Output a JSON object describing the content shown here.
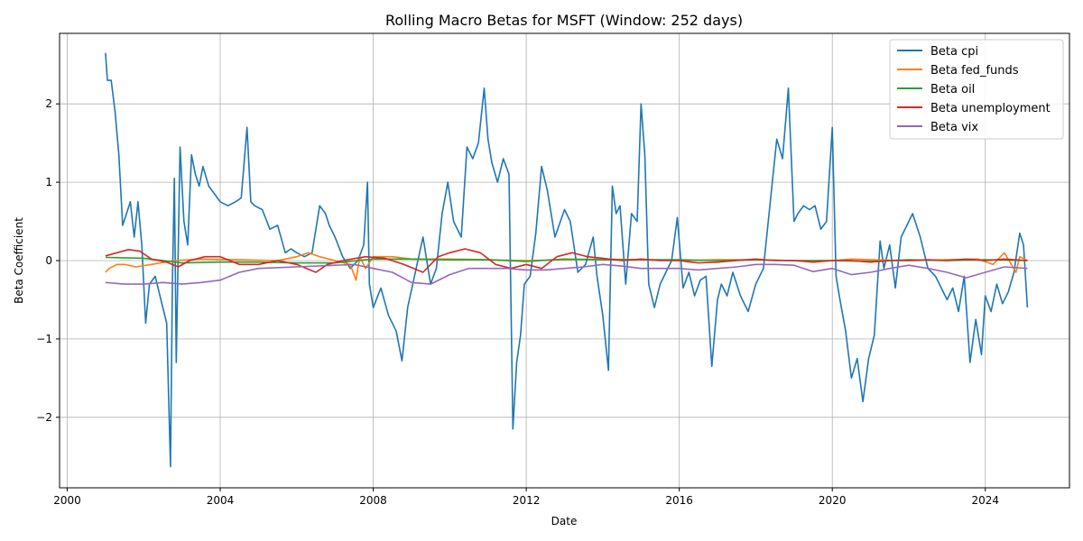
{
  "chart_data": {
    "type": "line",
    "title": "Rolling Macro Betas for MSFT (Window: 252 days)",
    "xlabel": "Date",
    "ylabel": "Beta Coefficient",
    "xlim": [
      1999.8,
      2026.2
    ],
    "ylim": [
      -2.9,
      2.9
    ],
    "x_ticks": [
      2000,
      2004,
      2008,
      2012,
      2016,
      2020,
      2024
    ],
    "y_ticks": [
      -2,
      -1,
      0,
      1,
      2
    ],
    "y_tick_labels": [
      "−2",
      "−1",
      "0",
      "1",
      "2"
    ],
    "grid": true,
    "legend_position": "top-right",
    "series": [
      {
        "name": "Beta cpi",
        "color": "#1f77b4",
        "x": [
          2001.0,
          2001.05,
          2001.15,
          2001.25,
          2001.35,
          2001.45,
          2001.55,
          2001.65,
          2001.75,
          2001.85,
          2001.95,
          2002.05,
          2002.15,
          2002.3,
          2002.45,
          2002.6,
          2002.7,
          2002.75,
          2002.8,
          2002.85,
          2002.95,
          2003.05,
          2003.15,
          2003.25,
          2003.35,
          2003.45,
          2003.55,
          2003.7,
          2003.85,
          2004.0,
          2004.2,
          2004.4,
          2004.55,
          2004.7,
          2004.8,
          2004.9,
          2005.1,
          2005.3,
          2005.5,
          2005.7,
          2005.85,
          2006.0,
          2006.2,
          2006.4,
          2006.6,
          2006.75,
          2006.85,
          2007.0,
          2007.2,
          2007.4,
          2007.6,
          2007.75,
          2007.85,
          2007.9,
          2008.0,
          2008.2,
          2008.4,
          2008.6,
          2008.75,
          2008.9,
          2009.1,
          2009.3,
          2009.5,
          2009.65,
          2009.8,
          2009.95,
          2010.1,
          2010.3,
          2010.45,
          2010.6,
          2010.75,
          2010.9,
          2011.0,
          2011.1,
          2011.25,
          2011.4,
          2011.55,
          2011.65,
          2011.75,
          2011.85,
          2011.95,
          2012.1,
          2012.25,
          2012.4,
          2012.55,
          2012.75,
          2013.0,
          2013.15,
          2013.35,
          2013.55,
          2013.75,
          2013.85,
          2014.0,
          2014.15,
          2014.25,
          2014.35,
          2014.45,
          2014.6,
          2014.75,
          2014.9,
          2015.0,
          2015.1,
          2015.2,
          2015.35,
          2015.5,
          2015.65,
          2015.8,
          2015.95,
          2016.1,
          2016.25,
          2016.4,
          2016.55,
          2016.7,
          2016.85,
          2017.0,
          2017.1,
          2017.25,
          2017.4,
          2017.6,
          2017.8,
          2018.0,
          2018.2,
          2018.4,
          2018.55,
          2018.7,
          2018.85,
          2019.0,
          2019.1,
          2019.25,
          2019.4,
          2019.55,
          2019.7,
          2019.85,
          2020.0,
          2020.1,
          2020.2,
          2020.35,
          2020.5,
          2020.65,
          2020.8,
          2020.95,
          2021.1,
          2021.25,
          2021.35,
          2021.5,
          2021.65,
          2021.8,
          2021.95,
          2022.1,
          2022.3,
          2022.5,
          2022.7,
          2022.85,
          2023.0,
          2023.15,
          2023.3,
          2023.45,
          2023.6,
          2023.75,
          2023.9,
          2024.0,
          2024.15,
          2024.3,
          2024.45,
          2024.6,
          2024.75,
          2024.9,
          2025.0,
          2025.1
        ],
        "values": [
          2.65,
          2.3,
          2.3,
          1.9,
          1.35,
          0.45,
          0.6,
          0.75,
          0.3,
          0.75,
          0.2,
          -0.8,
          -0.3,
          -0.2,
          -0.5,
          -0.8,
          -2.63,
          -0.3,
          1.05,
          -1.3,
          1.45,
          0.5,
          0.2,
          1.35,
          1.1,
          0.95,
          1.2,
          0.95,
          0.85,
          0.75,
          0.7,
          0.75,
          0.8,
          1.7,
          0.75,
          0.7,
          0.65,
          0.4,
          0.45,
          0.1,
          0.15,
          0.1,
          0.05,
          0.1,
          0.7,
          0.6,
          0.45,
          0.3,
          0.05,
          -0.1,
          0.0,
          0.2,
          1.0,
          -0.3,
          -0.6,
          -0.35,
          -0.7,
          -0.9,
          -1.28,
          -0.6,
          -0.15,
          0.3,
          -0.3,
          -0.1,
          0.6,
          1.0,
          0.5,
          0.3,
          1.45,
          1.3,
          1.5,
          2.2,
          1.55,
          1.25,
          1.0,
          1.3,
          1.1,
          -2.15,
          -1.3,
          -0.95,
          -0.3,
          -0.2,
          0.35,
          1.2,
          0.9,
          0.3,
          0.65,
          0.5,
          -0.15,
          -0.05,
          0.3,
          -0.2,
          -0.7,
          -1.4,
          0.95,
          0.6,
          0.7,
          -0.3,
          0.6,
          0.5,
          2.0,
          1.35,
          -0.3,
          -0.6,
          -0.3,
          -0.15,
          0.0,
          0.55,
          -0.35,
          -0.15,
          -0.45,
          -0.25,
          -0.2,
          -1.35,
          -0.5,
          -0.3,
          -0.45,
          -0.15,
          -0.45,
          -0.65,
          -0.3,
          -0.1,
          0.85,
          1.55,
          1.3,
          2.2,
          0.5,
          0.6,
          0.7,
          0.65,
          0.7,
          0.4,
          0.5,
          1.7,
          -0.2,
          -0.5,
          -0.9,
          -1.5,
          -1.25,
          -1.8,
          -1.25,
          -0.95,
          0.25,
          -0.1,
          0.2,
          -0.35,
          0.3,
          0.45,
          0.6,
          0.3,
          -0.1,
          -0.2,
          -0.35,
          -0.5,
          -0.35,
          -0.65,
          -0.2,
          -1.3,
          -0.75,
          -1.2,
          -0.45,
          -0.65,
          -0.3,
          -0.55,
          -0.4,
          -0.15,
          0.35,
          0.2,
          -0.6
        ]
      },
      {
        "name": "Beta fed_funds",
        "color": "#ff7f0e",
        "x": [
          2001.0,
          2001.1,
          2001.3,
          2001.5,
          2001.8,
          2002.2,
          2002.8,
          2003.5,
          2004.5,
          2005.5,
          2006.0,
          2006.3,
          2006.6,
          2007.0,
          2007.4,
          2007.55,
          2007.65,
          2007.8,
          2008.0,
          2008.5,
          2009.0,
          2010.0,
          2011.0,
          2012.0,
          2013.0,
          2014.0,
          2015.0,
          2016.0,
          2017.0,
          2018.0,
          2019.0,
          2020.0,
          2020.5,
          2021.0,
          2022.0,
          2023.0,
          2023.8,
          2024.2,
          2024.5,
          2024.8,
          2024.9,
          2025.1
        ],
        "values": [
          -0.15,
          -0.1,
          -0.05,
          -0.05,
          -0.08,
          -0.05,
          0.0,
          0.02,
          0.01,
          0.0,
          0.05,
          0.1,
          0.05,
          0.0,
          -0.05,
          -0.25,
          0.05,
          -0.1,
          0.05,
          0.05,
          0.02,
          0.02,
          0.01,
          0.0,
          0.01,
          0.02,
          0.01,
          0.0,
          0.01,
          0.01,
          0.0,
          0.0,
          0.02,
          0.01,
          0.0,
          0.01,
          0.02,
          -0.05,
          0.1,
          -0.15,
          0.05,
          0.0
        ]
      },
      {
        "name": "Beta oil",
        "color": "#2ca02c",
        "x": [
          2001.0,
          2002.0,
          2003.0,
          2004.0,
          2005.0,
          2006.0,
          2007.0,
          2008.0,
          2009.0,
          2010.0,
          2011.0,
          2012.0,
          2013.0,
          2014.0,
          2015.0,
          2016.0,
          2017.0,
          2018.0,
          2019.0,
          2020.0,
          2021.0,
          2022.0,
          2023.0,
          2024.0,
          2025.1
        ],
        "values": [
          0.04,
          0.03,
          -0.03,
          -0.02,
          -0.02,
          -0.03,
          -0.03,
          0.02,
          0.02,
          0.01,
          0.01,
          -0.01,
          0.02,
          0.01,
          0.01,
          0.01,
          0.0,
          0.01,
          0.0,
          0.0,
          -0.01,
          0.01,
          0.0,
          0.01,
          0.0
        ]
      },
      {
        "name": "Beta unemployment",
        "color": "#d62728",
        "x": [
          2001.0,
          2001.3,
          2001.6,
          2001.9,
          2002.2,
          2002.6,
          2002.9,
          2003.2,
          2003.6,
          2004.0,
          2004.5,
          2005.0,
          2005.5,
          2006.0,
          2006.5,
          2006.8,
          2007.2,
          2007.8,
          2008.3,
          2008.8,
          2009.3,
          2009.7,
          2010.0,
          2010.4,
          2010.8,
          2011.2,
          2011.6,
          2012.0,
          2012.4,
          2012.8,
          2013.2,
          2013.6,
          2014.0,
          2014.5,
          2015.0,
          2015.5,
          2016.0,
          2016.5,
          2017.0,
          2017.5,
          2018.0,
          2018.5,
          2019.0,
          2019.5,
          2020.0,
          2020.5,
          2021.0,
          2021.5,
          2022.0,
          2022.5,
          2023.0,
          2023.5,
          2024.0,
          2024.5,
          2025.1
        ],
        "values": [
          0.06,
          0.1,
          0.14,
          0.12,
          0.02,
          -0.02,
          -0.08,
          0.0,
          0.05,
          0.05,
          -0.05,
          -0.05,
          0.0,
          -0.05,
          -0.15,
          -0.05,
          0.0,
          0.05,
          0.03,
          -0.05,
          -0.15,
          0.05,
          0.1,
          0.15,
          0.1,
          -0.05,
          -0.1,
          -0.05,
          -0.1,
          0.05,
          0.1,
          0.05,
          0.03,
          0.0,
          0.02,
          0.0,
          0.0,
          -0.03,
          -0.02,
          0.0,
          0.02,
          0.0,
          0.0,
          -0.02,
          0.0,
          0.0,
          -0.02,
          0.0,
          0.0,
          0.01,
          0.0,
          0.02,
          0.0,
          0.02,
          0.0
        ]
      },
      {
        "name": "Beta vix",
        "color": "#9467bd",
        "x": [
          2001.0,
          2001.5,
          2002.0,
          2002.5,
          2003.0,
          2003.5,
          2004.0,
          2004.5,
          2005.0,
          2006.0,
          2007.0,
          2007.5,
          2008.0,
          2008.5,
          2009.0,
          2009.5,
          2010.0,
          2010.5,
          2011.0,
          2011.5,
          2012.0,
          2012.5,
          2013.0,
          2013.5,
          2014.0,
          2014.5,
          2015.0,
          2015.5,
          2016.0,
          2016.5,
          2017.0,
          2017.5,
          2018.0,
          2018.5,
          2019.0,
          2019.5,
          2020.0,
          2020.5,
          2021.0,
          2021.5,
          2022.0,
          2022.5,
          2023.0,
          2023.5,
          2024.0,
          2024.5,
          2025.1
        ],
        "values": [
          -0.28,
          -0.3,
          -0.3,
          -0.28,
          -0.3,
          -0.28,
          -0.25,
          -0.15,
          -0.1,
          -0.08,
          -0.06,
          -0.05,
          -0.1,
          -0.15,
          -0.28,
          -0.3,
          -0.18,
          -0.1,
          -0.1,
          -0.1,
          -0.12,
          -0.12,
          -0.1,
          -0.08,
          -0.05,
          -0.07,
          -0.1,
          -0.1,
          -0.1,
          -0.12,
          -0.1,
          -0.08,
          -0.05,
          -0.05,
          -0.06,
          -0.14,
          -0.1,
          -0.18,
          -0.15,
          -0.1,
          -0.06,
          -0.1,
          -0.15,
          -0.22,
          -0.15,
          -0.08,
          -0.1
        ]
      }
    ]
  }
}
